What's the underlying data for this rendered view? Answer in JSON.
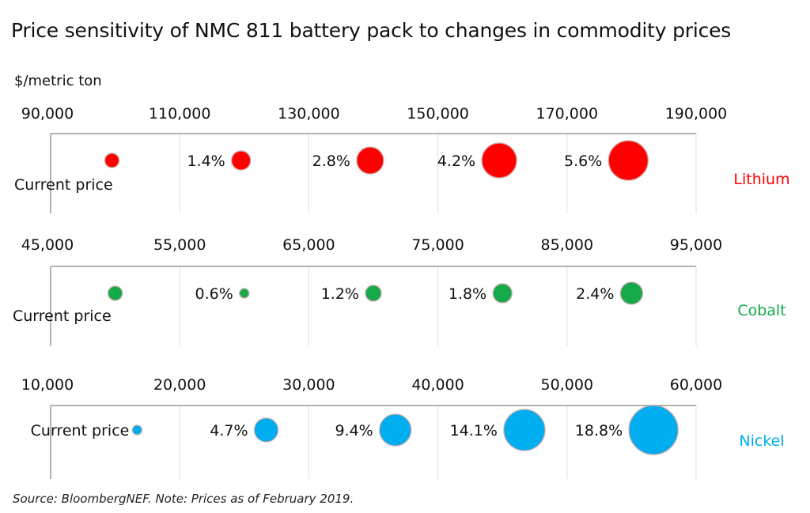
{
  "chart_data": {
    "type": "scatter",
    "subtype": "bubble",
    "title": "Price sensitivity of NMC 811 battery pack to changes in commodity prices",
    "ylabel": "$/metric ton",
    "grid": true,
    "source": "Source: BloombergNEF. Note: Prices as of February 2019.",
    "point_label_first": "Current price",
    "panels": [
      {
        "name": "Lithium",
        "color": "#ff0000",
        "xlim": [
          90000,
          190000
        ],
        "ticks": [
          "90,000",
          "110,000",
          "130,000",
          "150,000",
          "170,000",
          "190,000"
        ],
        "x": [
          99500,
          119500,
          139500,
          159500,
          179500
        ],
        "sensitivity_pct": [
          0,
          1.4,
          2.8,
          4.2,
          5.6
        ],
        "labels": [
          "Current price",
          "1.4%",
          "2.8%",
          "4.2%",
          "5.6%"
        ]
      },
      {
        "name": "Cobalt",
        "color": "#16a94a",
        "xlim": [
          45000,
          95000
        ],
        "ticks": [
          "45,000",
          "55,000",
          "65,000",
          "75,000",
          "85,000",
          "95,000"
        ],
        "x": [
          50000,
          60000,
          70000,
          80000,
          90000
        ],
        "sensitivity_pct": [
          0,
          0.6,
          1.2,
          1.8,
          2.4
        ],
        "labels": [
          "Current price",
          "0.6%",
          "1.2%",
          "1.8%",
          "2.4%"
        ]
      },
      {
        "name": "Nickel",
        "color": "#00adef",
        "xlim": [
          10000,
          60000
        ],
        "ticks": [
          "10,000",
          "20,000",
          "30,000",
          "40,000",
          "50,000",
          "60,000"
        ],
        "x": [
          16700,
          26700,
          36700,
          46700,
          56700
        ],
        "sensitivity_pct": [
          0,
          4.7,
          9.4,
          14.1,
          18.8
        ],
        "labels": [
          "Current price",
          "4.7%",
          "9.4%",
          "14.1%",
          "18.8%"
        ]
      }
    ]
  }
}
